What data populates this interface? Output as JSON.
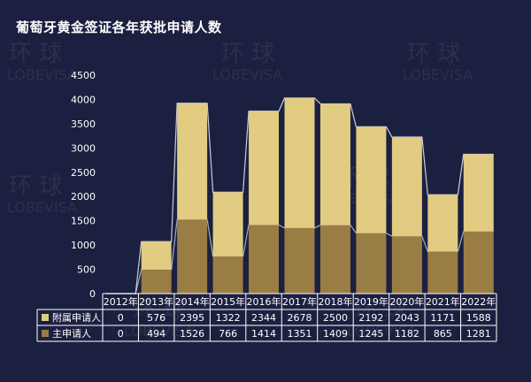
{
  "title": "葡萄牙黄金签证各年获批申请人数",
  "colors": {
    "background": "#1c2040",
    "dependents": "#e2cc82",
    "main": "#9a7d45",
    "connector": "#c9ccd6",
    "text": "#ffffff",
    "axis": "#ffffff"
  },
  "chart_data": {
    "type": "bar",
    "stacked": true,
    "categories": [
      "2012年",
      "2013年",
      "2014年",
      "2015年",
      "2016年",
      "2017年",
      "2018年",
      "2019年",
      "2020年",
      "2021年",
      "2022年"
    ],
    "series": [
      {
        "name": "主申请人",
        "values": [
          0,
          494,
          1526,
          766,
          1414,
          1351,
          1409,
          1245,
          1182,
          865,
          1281
        ]
      },
      {
        "name": "附属申请人",
        "values": [
          0,
          576,
          2395,
          1322,
          2344,
          2678,
          2500,
          2192,
          2043,
          1171,
          1588
        ]
      }
    ],
    "ylim": [
      0,
      4500
    ],
    "yticks": [
      "0",
      "500",
      "1000",
      "1500",
      "2000",
      "2500",
      "3000",
      "3500",
      "4000",
      "4500"
    ],
    "grid": false,
    "legend": "data-table"
  },
  "watermark": {
    "cn": "环 球",
    "en": "LOBEVISA"
  }
}
